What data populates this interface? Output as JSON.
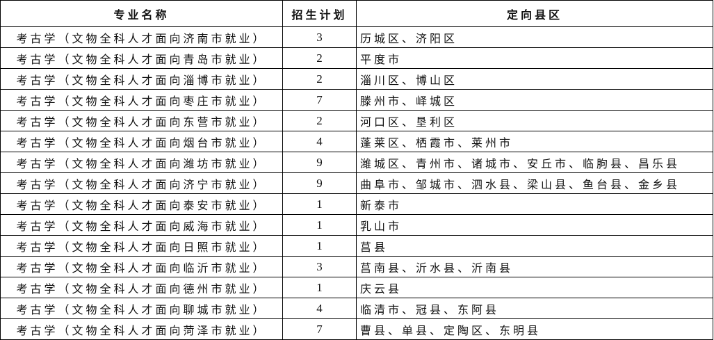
{
  "headers": [
    "专业名称",
    "招生计划",
    "定向县区"
  ],
  "rows": [
    {
      "name": "考古学（文物全科人才面向济南市就业）",
      "plan": "3",
      "areas": "历城区、济阳区"
    },
    {
      "name": "考古学（文物全科人才面向青岛市就业）",
      "plan": "2",
      "areas": "平度市"
    },
    {
      "name": "考古学（文物全科人才面向淄博市就业）",
      "plan": "2",
      "areas": "淄川区、博山区"
    },
    {
      "name": "考古学（文物全科人才面向枣庄市就业）",
      "plan": "7",
      "areas": "滕州市、峄城区"
    },
    {
      "name": "考古学（文物全科人才面向东营市就业）",
      "plan": "2",
      "areas": "河口区、垦利区"
    },
    {
      "name": "考古学（文物全科人才面向烟台市就业）",
      "plan": "4",
      "areas": "蓬莱区、栖霞市、莱州市"
    },
    {
      "name": "考古学（文物全科人才面向潍坊市就业）",
      "plan": "9",
      "areas": "潍城区、青州市、诸城市、安丘市、临朐县、昌乐县"
    },
    {
      "name": "考古学（文物全科人才面向济宁市就业）",
      "plan": "9",
      "areas": "曲阜市、邹城市、泗水县、梁山县、鱼台县、金乡县"
    },
    {
      "name": "考古学（文物全科人才面向泰安市就业）",
      "plan": "1",
      "areas": "新泰市"
    },
    {
      "name": "考古学（文物全科人才面向威海市就业）",
      "plan": "1",
      "areas": "乳山市"
    },
    {
      "name": "考古学（文物全科人才面向日照市就业）",
      "plan": "1",
      "areas": "莒县"
    },
    {
      "name": "考古学（文物全科人才面向临沂市就业）",
      "plan": "3",
      "areas": "莒南县、沂水县、沂南县"
    },
    {
      "name": "考古学（文物全科人才面向德州市就业）",
      "plan": "1",
      "areas": "庆云县"
    },
    {
      "name": "考古学（文物全科人才面向聊城市就业）",
      "plan": "4",
      "areas": "临清市、冠县、东阿县"
    },
    {
      "name": "考古学（文物全科人才面向菏泽市就业）",
      "plan": "7",
      "areas": "曹县、单县、定陶区、东明县"
    }
  ]
}
